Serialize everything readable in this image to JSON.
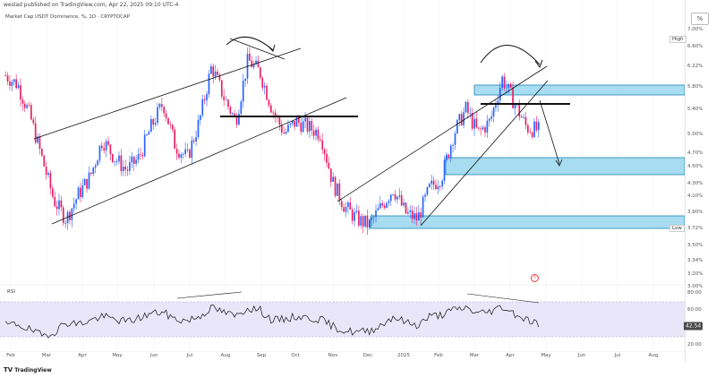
{
  "header": {
    "publisher": "weslad published on TradingView.com, Apr 22, 2025 09:10 UTC-4",
    "symbol": "Market Cap USDT Dominance, %, 1D · CRYPTOCAP"
  },
  "corner_label": "%",
  "rsi_label": "RSI",
  "marker_label": "f",
  "footer": {
    "logo": "TV",
    "brand": "TradingView"
  },
  "price_axis": {
    "ticks": [
      "7.00%",
      "6.60%",
      "6.22%",
      "5.80%",
      "5.40%",
      "5.00%",
      "4.70%",
      "4.50%",
      "4.30%",
      "4.10%",
      "3.90%",
      "3.72%",
      "3.50%",
      "3.34%",
      "3.20%",
      "3.00%"
    ],
    "high_tag": "High",
    "low_tag": "Low"
  },
  "rsi_axis": {
    "ticks": [
      "80.00",
      "60.00",
      "20.00"
    ],
    "current": "42.54"
  },
  "time_axis": {
    "months": [
      "Feb",
      "Mar",
      "Apr",
      "May",
      "Jun",
      "Jul",
      "Aug",
      "Sep",
      "Oct",
      "Nov",
      "Dec",
      "2025",
      "Feb",
      "Mar",
      "Apr",
      "May",
      "Jun",
      "Jul",
      "Aug"
    ]
  },
  "colors": {
    "up": "#2962ff",
    "down": "#e91e63",
    "zone_fill": "#a8dcf0",
    "zone_stroke": "#1e88b6",
    "rsi_band": "#e8e6f8",
    "rsi_line": "#111111",
    "annotation": "#111111"
  },
  "chart_data": {
    "type": "candlestick",
    "title": "Market Cap USDT Dominance, %, 1D",
    "series": [
      {
        "name": "USDT Dominance",
        "unit": "%",
        "values": [
          6.25,
          6.1,
          5.6,
          4.9,
          4.2,
          3.9,
          4.3,
          4.6,
          5.2,
          4.9,
          4.7,
          4.9,
          5.4,
          5.8,
          5.1,
          4.9,
          5.5,
          6.4,
          5.9,
          5.5,
          6.5,
          6.3,
          5.7,
          5.3,
          5.5,
          5.4,
          5.3,
          4.5,
          4.1,
          3.9,
          3.8,
          4.1,
          4.4,
          4.0,
          3.9,
          4.4,
          4.6,
          5.3,
          5.7,
          5.3,
          5.5,
          6.2,
          5.8,
          5.4,
          5.35
        ]
      }
    ],
    "rsi": [
      40,
      42,
      32,
      22,
      28,
      45,
      42,
      48,
      55,
      50,
      46,
      52,
      60,
      62,
      50,
      48,
      55,
      70,
      62,
      55,
      70,
      66,
      48,
      50,
      55,
      52,
      50,
      38,
      30,
      28,
      30,
      40,
      55,
      45,
      40,
      55,
      58,
      66,
      70,
      60,
      64,
      72,
      60,
      50,
      42.5
    ],
    "rsi_range": [
      0,
      100
    ],
    "price_range": [
      3.0,
      7.0
    ],
    "annotations": [
      "ascending channel 2024",
      "neckline breakdown",
      "rising channel 2025",
      "supply zone",
      "demand zone",
      "low zone",
      "projected drop arrow"
    ]
  }
}
